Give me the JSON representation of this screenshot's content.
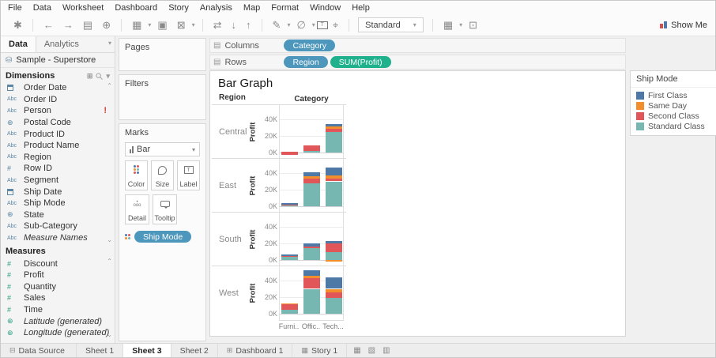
{
  "menu": {
    "items": [
      "File",
      "Data",
      "Worksheet",
      "Dashboard",
      "Story",
      "Analysis",
      "Map",
      "Format",
      "Window",
      "Help"
    ]
  },
  "toolbar": {
    "view_mode": "Standard",
    "show_me": "Show Me"
  },
  "data_pane": {
    "tabs": [
      {
        "label": "Data",
        "active": true
      },
      {
        "label": "Analytics",
        "active": false
      }
    ],
    "datasource": "Sample - Superstore",
    "dimensions": {
      "title": "Dimensions",
      "fields": [
        {
          "name": "Order Date",
          "type": "date"
        },
        {
          "name": "Order ID",
          "type": "abc"
        },
        {
          "name": "Person",
          "type": "abc",
          "alert": "!"
        },
        {
          "name": "Postal Code",
          "type": "geo"
        },
        {
          "name": "Product ID",
          "type": "abc"
        },
        {
          "name": "Product Name",
          "type": "abc"
        },
        {
          "name": "Region",
          "type": "abc"
        },
        {
          "name": "Row ID",
          "type": "num"
        },
        {
          "name": "Segment",
          "type": "abc"
        },
        {
          "name": "Ship Date",
          "type": "date"
        },
        {
          "name": "Ship Mode",
          "type": "abc"
        },
        {
          "name": "State",
          "type": "geo"
        },
        {
          "name": "Sub-Category",
          "type": "abc"
        },
        {
          "name": "Measure Names",
          "type": "abc",
          "italic": true
        }
      ]
    },
    "measures": {
      "title": "Measures",
      "fields": [
        {
          "name": "Discount",
          "type": "num"
        },
        {
          "name": "Profit",
          "type": "num"
        },
        {
          "name": "Quantity",
          "type": "num"
        },
        {
          "name": "Sales",
          "type": "num"
        },
        {
          "name": "Time",
          "type": "num"
        },
        {
          "name": "Latitude (generated)",
          "type": "geo",
          "italic": true
        },
        {
          "name": "Longitude (generated)",
          "type": "geo",
          "italic": true
        }
      ]
    }
  },
  "cards": {
    "pages": "Pages",
    "filters": "Filters",
    "marks": "Marks",
    "mark_type": "Bar",
    "buttons": [
      "Color",
      "Size",
      "Label",
      "Detail",
      "Tooltip"
    ],
    "marks_pill": "Ship Mode"
  },
  "shelves": {
    "columns": {
      "label": "Columns",
      "pills": [
        {
          "text": "Category",
          "color": "blue"
        }
      ]
    },
    "rows": {
      "label": "Rows",
      "pills": [
        {
          "text": "Region",
          "color": "blue"
        },
        {
          "text": "SUM(Profit)",
          "color": "green"
        }
      ]
    }
  },
  "chart_data": {
    "type": "bar",
    "stacked": true,
    "title": "Bar Graph",
    "row_field": "Region",
    "col_field": "Category",
    "ylabel": "Profit",
    "unit": "thousands (K) of profit",
    "ylim": [
      -5,
      55
    ],
    "grid": true,
    "y_ticks": [
      {
        "label": "40K",
        "value": 40
      },
      {
        "label": "20K",
        "value": 20
      },
      {
        "label": "0K",
        "value": 0
      }
    ],
    "categories": [
      "Furniture",
      "Office Supplies",
      "Technology"
    ],
    "category_labels": [
      "Furni..",
      "Offic..",
      "Tech..."
    ],
    "series_order": [
      "Standard Class",
      "Second Class",
      "Same Day",
      "First Class"
    ],
    "colors": {
      "First Class": "#4e79a7",
      "Same Day": "#f28e2b",
      "Second Class": "#e15759",
      "Standard Class": "#76b7b2"
    },
    "rows": [
      {
        "region": "Central",
        "bars": [
          {
            "category": "Furniture",
            "segments": [
              {
                "ship": "Second Class",
                "value": 1
              },
              {
                "ship": "Second Class",
                "value": -2.5
              }
            ]
          },
          {
            "category": "Office Supplies",
            "segments": [
              {
                "ship": "Standard Class",
                "value": 2
              },
              {
                "ship": "Second Class",
                "value": 7
              }
            ]
          },
          {
            "category": "Technology",
            "segments": [
              {
                "ship": "Standard Class",
                "value": 25
              },
              {
                "ship": "Second Class",
                "value": 4
              },
              {
                "ship": "Same Day",
                "value": 2
              },
              {
                "ship": "First Class",
                "value": 3
              }
            ]
          }
        ]
      },
      {
        "region": "East",
        "bars": [
          {
            "category": "Furniture",
            "segments": [
              {
                "ship": "Standard Class",
                "value": 1
              },
              {
                "ship": "Second Class",
                "value": 0.5
              },
              {
                "ship": "First Class",
                "value": 1.5
              }
            ]
          },
          {
            "category": "Office Supplies",
            "segments": [
              {
                "ship": "Standard Class",
                "value": 28
              },
              {
                "ship": "Second Class",
                "value": 5
              },
              {
                "ship": "Same Day",
                "value": 3
              },
              {
                "ship": "First Class",
                "value": 5
              }
            ]
          },
          {
            "category": "Technology",
            "segments": [
              {
                "ship": "Standard Class",
                "value": 30
              },
              {
                "ship": "Second Class",
                "value": 3
              },
              {
                "ship": "Same Day",
                "value": 4
              },
              {
                "ship": "First Class",
                "value": 10
              }
            ]
          }
        ]
      },
      {
        "region": "South",
        "bars": [
          {
            "category": "Furniture",
            "segments": [
              {
                "ship": "Standard Class",
                "value": 4
              },
              {
                "ship": "Second Class",
                "value": 1
              },
              {
                "ship": "First Class",
                "value": 1.5
              }
            ]
          },
          {
            "category": "Office Supplies",
            "segments": [
              {
                "ship": "Standard Class",
                "value": 14
              },
              {
                "ship": "Second Class",
                "value": 2
              },
              {
                "ship": "First Class",
                "value": 4
              }
            ]
          },
          {
            "category": "Technology",
            "segments": [
              {
                "ship": "Same Day",
                "value": -2
              },
              {
                "ship": "Standard Class",
                "value": 10
              },
              {
                "ship": "Second Class",
                "value": 10
              },
              {
                "ship": "First Class",
                "value": 3
              }
            ]
          }
        ]
      },
      {
        "region": "West",
        "bars": [
          {
            "category": "Furniture",
            "segments": [
              {
                "ship": "Standard Class",
                "value": 5
              },
              {
                "ship": "Second Class",
                "value": 6
              },
              {
                "ship": "Same Day",
                "value": 0.7
              }
            ]
          },
          {
            "category": "Office Supplies",
            "segments": [
              {
                "ship": "Standard Class",
                "value": 30
              },
              {
                "ship": "Second Class",
                "value": 13
              },
              {
                "ship": "Same Day",
                "value": 3
              },
              {
                "ship": "First Class",
                "value": 6
              }
            ]
          },
          {
            "category": "Technology",
            "segments": [
              {
                "ship": "Standard Class",
                "value": 19
              },
              {
                "ship": "Second Class",
                "value": 7
              },
              {
                "ship": "Same Day",
                "value": 4
              },
              {
                "ship": "First Class",
                "value": 14
              }
            ]
          }
        ]
      }
    ]
  },
  "legend": {
    "title": "Ship Mode",
    "entries": [
      {
        "label": "First Class",
        "color": "#4e79a7"
      },
      {
        "label": "Same Day",
        "color": "#f28e2b"
      },
      {
        "label": "Second Class",
        "color": "#e15759"
      },
      {
        "label": "Standard Class",
        "color": "#76b7b2"
      }
    ]
  },
  "tabs_bar": {
    "tabs": [
      {
        "label": "Data Source",
        "icon": "datasource",
        "active": false
      },
      {
        "label": "Sheet 1",
        "active": false
      },
      {
        "label": "Sheet 3",
        "active": true
      },
      {
        "label": "Sheet 2",
        "active": false
      },
      {
        "label": "Dashboard 1",
        "icon": "dashboard",
        "active": false
      },
      {
        "label": "Story 1",
        "icon": "story",
        "active": false
      }
    ]
  }
}
